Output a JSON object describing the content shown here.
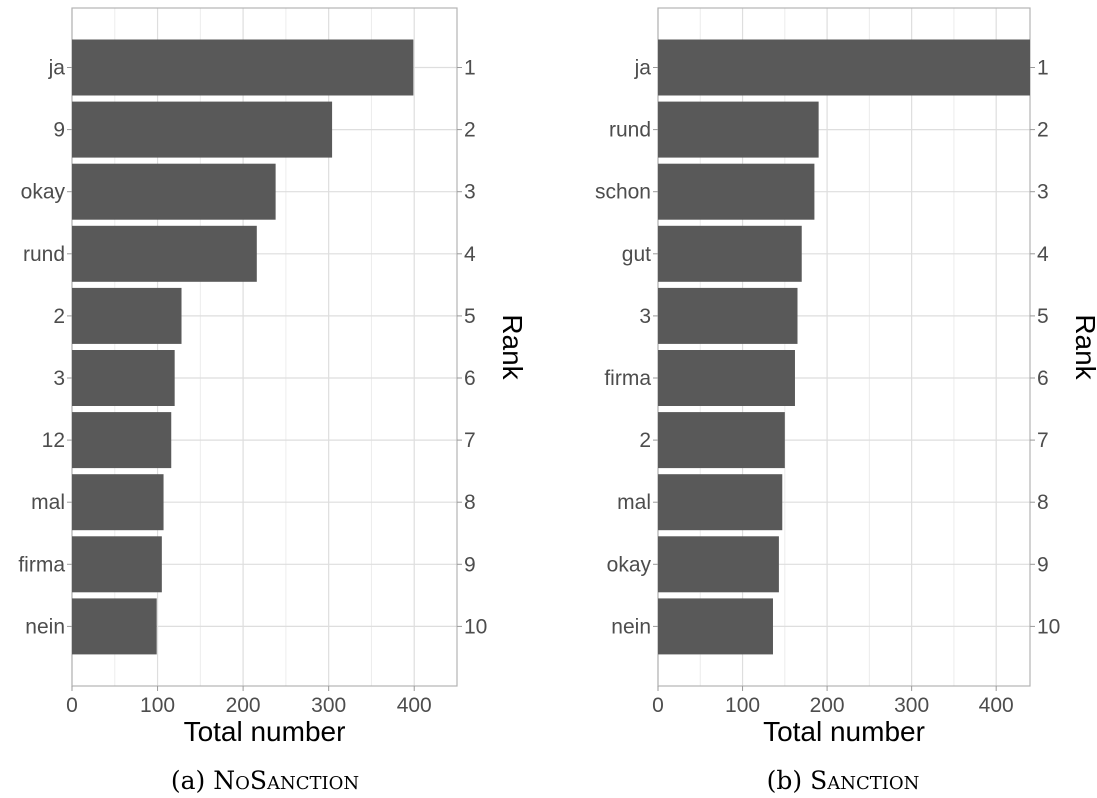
{
  "chart_data": [
    {
      "type": "bar",
      "orientation": "horizontal",
      "caption_prefix": "(a)",
      "caption_name": "NoSanction",
      "categories": [
        "ja",
        "9",
        "okay",
        "rund",
        "2",
        "3",
        "12",
        "mal",
        "firma",
        "nein"
      ],
      "values": [
        399,
        304,
        238,
        216,
        128,
        120,
        116,
        107,
        105,
        99
      ],
      "ranks": [
        "1",
        "2",
        "3",
        "4",
        "5",
        "6",
        "7",
        "8",
        "9",
        "10"
      ],
      "xlabel": "Total number",
      "ylabel_right": "Rank",
      "xlim": [
        0,
        450
      ],
      "xticks": [
        0,
        100,
        200,
        300,
        400
      ],
      "grid": true,
      "bar_color": "#595959"
    },
    {
      "type": "bar",
      "orientation": "horizontal",
      "caption_prefix": "(b)",
      "caption_name": "Sanction",
      "categories": [
        "ja",
        "rund",
        "schon",
        "gut",
        "3",
        "firma",
        "2",
        "mal",
        "okay",
        "nein"
      ],
      "values": [
        440,
        190,
        185,
        170,
        165,
        162,
        150,
        147,
        143,
        136
      ],
      "ranks": [
        "1",
        "2",
        "3",
        "4",
        "5",
        "6",
        "7",
        "8",
        "9",
        "10"
      ],
      "xlabel": "Total number",
      "ylabel_right": "Rank",
      "xlim": [
        0,
        440
      ],
      "xticks": [
        0,
        100,
        200,
        300,
        400
      ],
      "grid": true,
      "bar_color": "#595959"
    }
  ]
}
